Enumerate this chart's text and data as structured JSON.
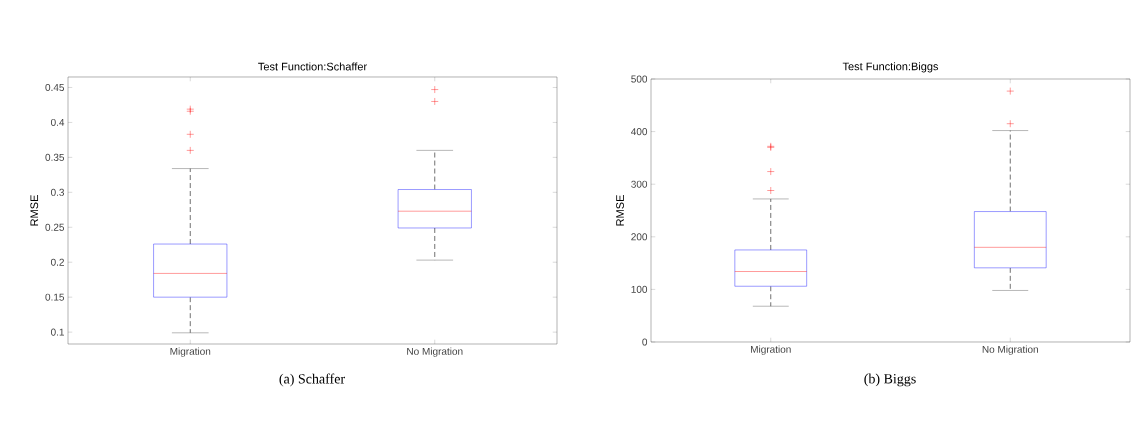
{
  "chart_data": [
    {
      "type": "box",
      "title": "Test Function:Schaffer",
      "ylabel": "RMSE",
      "categories": [
        "Migration",
        "No Migration"
      ],
      "boxes": [
        {
          "low": 0.099,
          "q1": 0.15,
          "median": 0.184,
          "q3": 0.226,
          "high": 0.334,
          "outliers": [
            0.36,
            0.383,
            0.416,
            0.419
          ]
        },
        {
          "low": 0.203,
          "q1": 0.249,
          "median": 0.273,
          "q3": 0.304,
          "high": 0.36,
          "outliers": [
            0.43,
            0.447
          ]
        }
      ],
      "ylim": [
        0.083,
        0.465
      ],
      "yticks": [
        0.1,
        0.15,
        0.2,
        0.25,
        0.3,
        0.35,
        0.4,
        0.45
      ],
      "annotations": [
        "(a) Schaffer"
      ]
    },
    {
      "type": "box",
      "title": "Test Function:Biggs",
      "ylabel": "RMSE",
      "categories": [
        "Migration",
        "No Migration"
      ],
      "boxes": [
        {
          "low": 68,
          "q1": 106,
          "median": 134,
          "q3": 175,
          "high": 272,
          "outliers": [
            288,
            324,
            370,
            372
          ]
        },
        {
          "low": 98,
          "q1": 141,
          "median": 180,
          "q3": 248,
          "high": 402,
          "outliers": [
            415,
            477
          ]
        }
      ],
      "ylim": [
        0,
        500
      ],
      "yticks": [
        0,
        100,
        200,
        300,
        400,
        500
      ],
      "annotations": [
        "(b) Biggs"
      ]
    }
  ]
}
